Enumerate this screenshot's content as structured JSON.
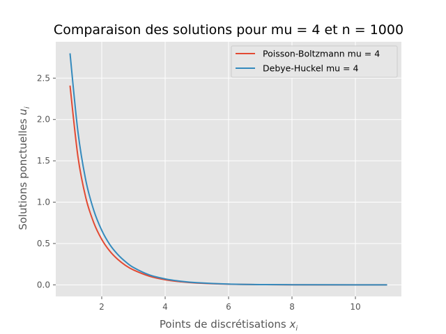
{
  "chart_data": {
    "type": "line",
    "title": "Comparaison des solutions pour mu = 4 et n = 1000",
    "xlabel_base": "Points de discrétisations",
    "xlabel_var": "x",
    "xlabel_sub": "i",
    "ylabel_base": "Solutions ponctuelles",
    "ylabel_var": "u",
    "ylabel_sub": "i",
    "xlim": [
      0.55,
      11.45
    ],
    "ylim": [
      -0.14,
      2.94
    ],
    "xticks": [
      2,
      4,
      6,
      8,
      10
    ],
    "yticks": [
      0.0,
      0.5,
      1.0,
      1.5,
      2.0,
      2.5
    ],
    "grid": true,
    "legend_position": "top-right",
    "x": [
      1.0,
      1.25,
      1.5,
      1.75,
      2.0,
      2.25,
      2.5,
      2.75,
      3.0,
      3.5,
      4.0,
      4.5,
      5.0,
      6.0,
      7.0,
      8.0,
      9.0,
      10.0,
      11.0
    ],
    "series": [
      {
        "name": "Poisson-Boltzmann mu = 4",
        "color": "#E24A33",
        "values": [
          2.41,
          1.55,
          1.05,
          0.75,
          0.55,
          0.41,
          0.31,
          0.235,
          0.18,
          0.105,
          0.062,
          0.037,
          0.022,
          0.008,
          0.003,
          0.001,
          0.0004,
          0.0001,
          0.0
        ]
      },
      {
        "name": "Debye-Huckel mu = 4",
        "color": "#348ABD",
        "values": [
          2.8,
          1.85,
          1.26,
          0.9,
          0.66,
          0.49,
          0.37,
          0.28,
          0.21,
          0.12,
          0.072,
          0.043,
          0.026,
          0.009,
          0.0035,
          0.0013,
          0.0005,
          0.0002,
          0.0
        ]
      }
    ]
  }
}
